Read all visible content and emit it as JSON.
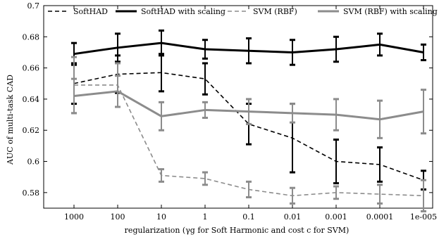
{
  "chart_data": {
    "type": "line",
    "xlabel": "regularization (γg for Soft Harmonic and cost c for SVM)",
    "ylabel": "AUC of multi-task CAD",
    "categories": [
      "1000",
      "100",
      "10",
      "1",
      "0.1",
      "0.01",
      "0.001",
      "0.0001",
      "1e-005"
    ],
    "ylim": [
      0.57,
      0.7
    ],
    "yticks": [
      "0.58",
      "0.6",
      "0.62",
      "0.64",
      "0.66",
      "0.68",
      "0.7"
    ],
    "legend_position": "top",
    "grid": false,
    "series": [
      {
        "name": "SoftHAD",
        "color": "#000000",
        "dash": "dashed",
        "values": [
          0.65,
          0.656,
          0.657,
          0.653,
          0.624,
          0.615,
          0.6,
          0.598,
          0.588
        ],
        "errors": [
          0.013,
          0.012,
          0.012,
          0.01,
          0.013,
          0.022,
          0.014,
          0.011,
          0.006
        ]
      },
      {
        "name": "SoftHAD with scaling",
        "color": "#000000",
        "dash": "solid",
        "values": [
          0.669,
          0.673,
          0.676,
          0.672,
          0.671,
          0.67,
          0.672,
          0.675,
          0.67
        ],
        "errors": [
          0.007,
          0.009,
          0.008,
          0.006,
          0.008,
          0.008,
          0.008,
          0.007,
          0.005
        ]
      },
      {
        "name": "SVM (RBF)",
        "color": "#8c8c8c",
        "dash": "dashed",
        "values": [
          0.649,
          0.649,
          0.591,
          0.589,
          0.582,
          0.578,
          0.58,
          0.579,
          0.578
        ],
        "errors": [
          0.018,
          0.014,
          0.004,
          0.004,
          0.005,
          0.005,
          0.004,
          0.006,
          0.01
        ]
      },
      {
        "name": "SVM (RBF) with scaling",
        "color": "#8c8c8c",
        "dash": "solid",
        "values": [
          0.642,
          0.645,
          0.629,
          0.633,
          0.632,
          0.631,
          0.63,
          0.627,
          0.632
        ],
        "errors": [
          0.011,
          0.01,
          0.009,
          0.005,
          0.008,
          0.006,
          0.01,
          0.012,
          0.014
        ]
      }
    ]
  }
}
